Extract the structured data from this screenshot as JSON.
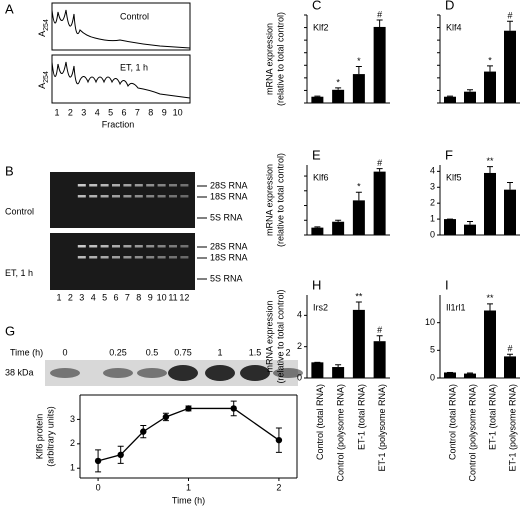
{
  "profile": {
    "panel": "A",
    "ylabel": "A",
    "ylabel_sub": "254",
    "traces": [
      "Control",
      "ET, 1 h"
    ],
    "fractions": [
      "1",
      "2",
      "3",
      "4",
      "5",
      "6",
      "7",
      "8",
      "9",
      "10"
    ],
    "xlabel": "Fraction"
  },
  "gel": {
    "panel": "B",
    "rows": [
      "Control",
      "ET, 1 h"
    ],
    "bands": [
      [
        "28S RNA",
        "18S RNA",
        "5S RNA"
      ],
      [
        "28S RNA",
        "18S RNA",
        "5S RNA"
      ]
    ],
    "lanes": [
      "1",
      "2",
      "3",
      "4",
      "5",
      "6",
      "7",
      "8",
      "9",
      "10",
      "11",
      "12"
    ]
  },
  "blot": {
    "time_label": "Time (h)",
    "times": [
      "0",
      "0.25",
      "0.5",
      "0.75",
      "1",
      "1.5",
      "2"
    ],
    "marker": "38 kDa"
  },
  "chart_data": [
    {
      "type": "bar",
      "panel": "C",
      "label": "Klf2",
      "values": [
        1,
        2.1,
        4.6,
        12.1
      ],
      "errors": [
        0.1,
        0.3,
        1.2,
        1.1
      ],
      "markers": [
        null,
        "*",
        "*",
        "#"
      ],
      "ylim": [
        0,
        14
      ],
      "yticks": [
        0,
        2,
        4,
        6,
        8,
        10,
        12,
        14
      ],
      "show_tick_labels": false,
      "ylabel": [
        "mRNA expression",
        "(relative to total control)"
      ],
      "color": "#000000"
    },
    {
      "type": "bar",
      "panel": "D",
      "label": "Klf4",
      "values": [
        1,
        1.8,
        5,
        11.5
      ],
      "errors": [
        0.1,
        0.3,
        0.9,
        1.5
      ],
      "markers": [
        null,
        null,
        "*",
        "#"
      ],
      "ylim": [
        0,
        14
      ],
      "yticks": [
        0,
        2,
        4,
        6,
        8,
        10,
        12,
        14
      ],
      "show_tick_labels": false,
      "color": "#000000"
    },
    {
      "type": "bar",
      "panel": "E",
      "label": "Klf6",
      "values": [
        1,
        1.8,
        4.7,
        8.6
      ],
      "errors": [
        0.1,
        0.2,
        1.1,
        0.4
      ],
      "markers": [
        null,
        null,
        "*",
        "#"
      ],
      "ylim": [
        0,
        9.5
      ],
      "yticks": [
        0,
        2,
        4,
        6,
        8
      ],
      "show_tick_labels": false,
      "ylabel": [
        "mRNA expression",
        "(relative to total control)"
      ],
      "color": "#000000"
    },
    {
      "type": "bar",
      "panel": "F",
      "label": "Klf5",
      "values": [
        1,
        0.65,
        3.9,
        2.85
      ],
      "errors": [
        0,
        0.2,
        0.4,
        0.45
      ],
      "markers": [
        null,
        null,
        "**",
        null
      ],
      "ylim": [
        0,
        4.4
      ],
      "yticks": [
        0,
        1,
        2,
        3,
        4
      ],
      "show_tick_labels": true,
      "color": "#000000"
    },
    {
      "type": "bar",
      "panel": "H",
      "label": "Irs2",
      "values": [
        1,
        0.7,
        4.35,
        2.35
      ],
      "errors": [
        0,
        0.15,
        0.5,
        0.35
      ],
      "markers": [
        null,
        null,
        "**",
        "#"
      ],
      "ylim": [
        0,
        5.3
      ],
      "yticks": [
        0,
        2,
        4
      ],
      "show_tick_labels": true,
      "ylabel": [
        "mRNA expression",
        "(relative to total control)"
      ],
      "categories": [
        "Control (total RNA)",
        "Control (polysome RNA)",
        "ET-1 (total RNA)",
        "ET-1 (polysome RNA)"
      ],
      "color": "#000000"
    },
    {
      "type": "bar",
      "panel": "I",
      "label": "Il1rl1",
      "values": [
        1,
        0.8,
        12.2,
        3.9
      ],
      "errors": [
        0,
        0.1,
        1.2,
        0.4
      ],
      "markers": [
        null,
        null,
        "**",
        "#"
      ],
      "ylim": [
        0,
        15
      ],
      "yticks": [
        0,
        5,
        10
      ],
      "show_tick_labels": true,
      "categories": [
        "Control (total RNA)",
        "Control (polysome RNA)",
        "ET-1 (total RNA)",
        "ET-1 (polysome RNA)"
      ],
      "color": "#000000"
    },
    {
      "type": "line",
      "panel": "G",
      "x": [
        0,
        0.25,
        0.5,
        0.75,
        1,
        1.5,
        2
      ],
      "values": [
        1.3,
        1.55,
        2.5,
        3.1,
        3.45,
        3.45,
        2.15
      ],
      "errors": [
        0.45,
        0.35,
        0.25,
        0.15,
        0.1,
        0.3,
        0.5
      ],
      "xlim": [
        -0.2,
        2.2
      ],
      "xticks": [
        0,
        1,
        2
      ],
      "ylim": [
        0.6,
        4
      ],
      "yticks": [
        1,
        2,
        3
      ],
      "xlabel": "Time (h)",
      "ylabel": [
        "Klf6 protein",
        "(arbitrary units)"
      ],
      "color": "#000000"
    }
  ]
}
